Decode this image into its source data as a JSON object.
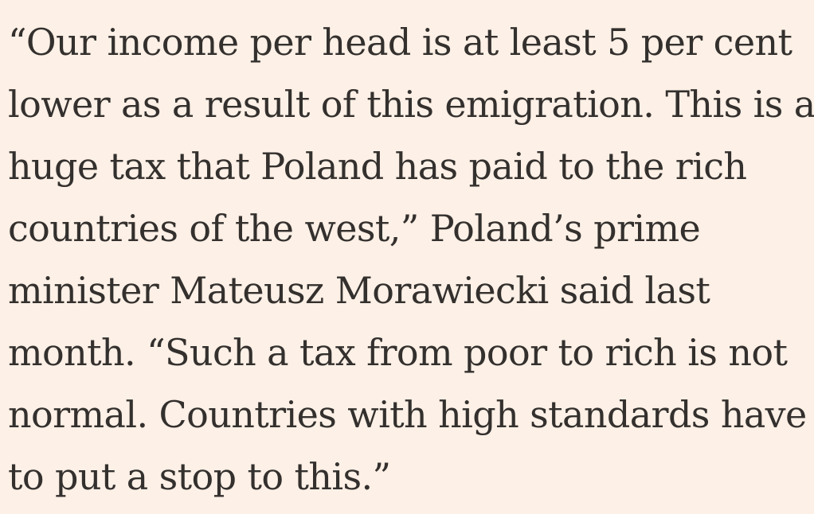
{
  "article": {
    "background_color": "#fdf0e6",
    "text_color": "#33302e",
    "paragraph_lines": [
      "“Our income per head is at least 5 per cent",
      "lower as a result of this emigration. This is a",
      "huge tax that Poland has paid to the rich",
      "countries of the west,” Poland’s prime",
      "minister Mateusz Morawiecki said last",
      "month. “Such a tax from poor to rich is not",
      "normal. Countries with high standards have",
      "to put a stop to this.”"
    ]
  }
}
